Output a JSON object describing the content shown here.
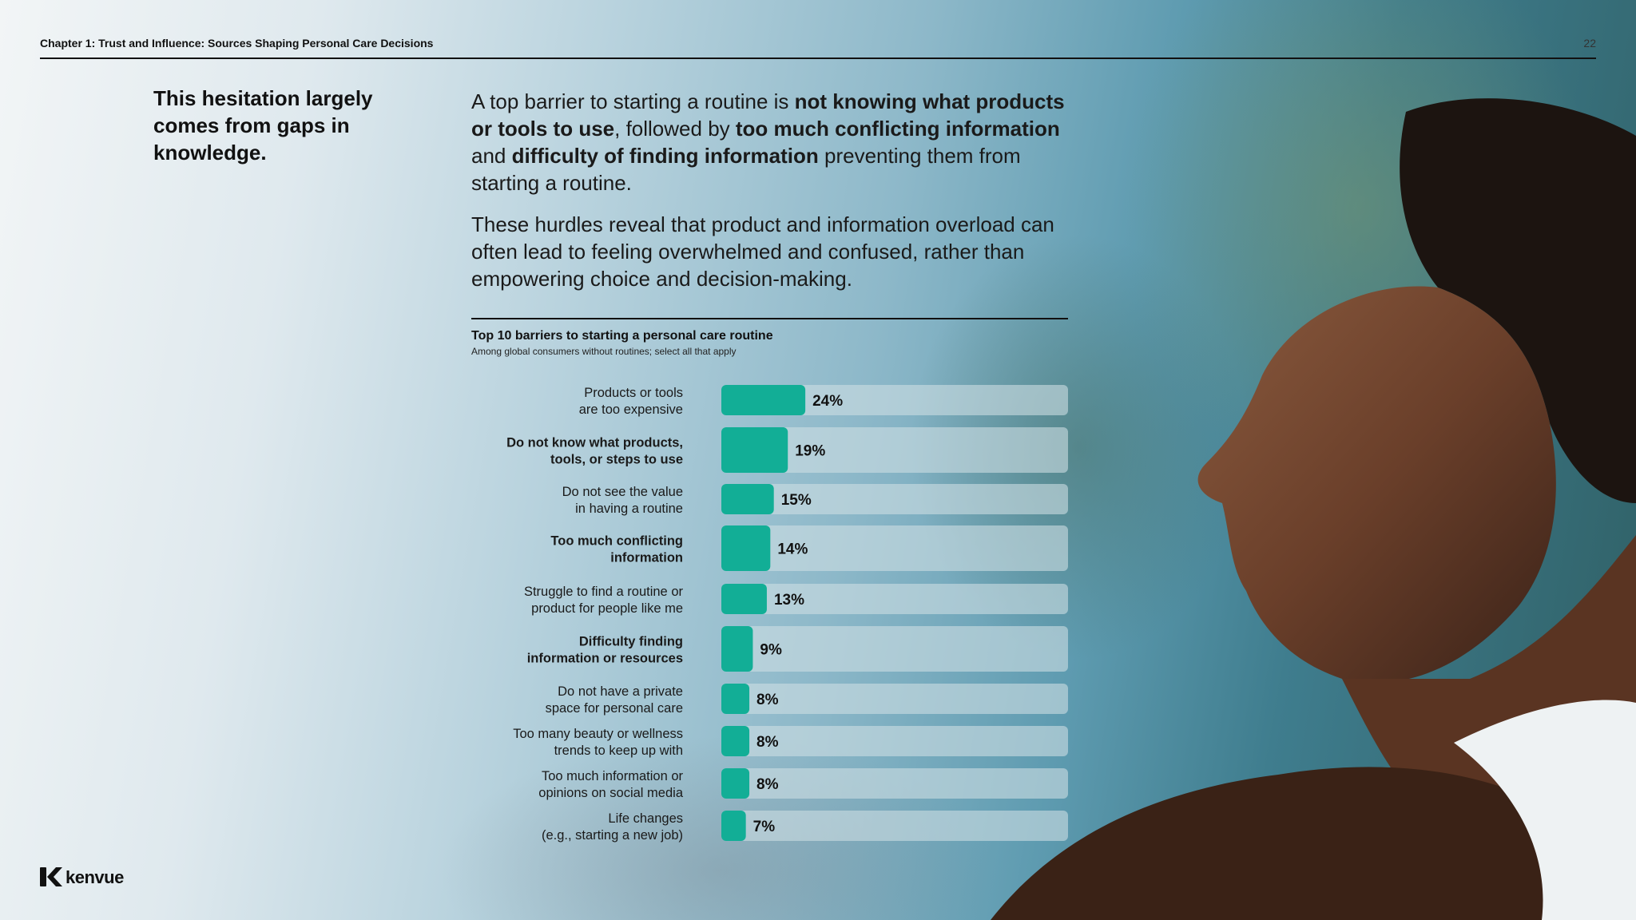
{
  "header": {
    "chapter": "Chapter 1: Trust and Influence: Sources Shaping Personal Care Decisions",
    "page_number": "22"
  },
  "headline": "This hesitation largely comes from gaps in knowledge.",
  "intro": {
    "p1": [
      {
        "text": "A top barrier to starting a routine is ",
        "bold": false
      },
      {
        "text": "not knowing what products or tools to use",
        "bold": true
      },
      {
        "text": ", followed by ",
        "bold": false
      },
      {
        "text": "too much conflicting information",
        "bold": true
      },
      {
        "text": " and ",
        "bold": false
      },
      {
        "text": "difficulty of finding information",
        "bold": true
      },
      {
        "text": " preventing them from starting a routine.",
        "bold": false
      }
    ],
    "p2": "These hurdles reveal that product and information overload can often lead to feeling overwhelmed and confused, rather than empowering choice and decision-making."
  },
  "chart_data": {
    "type": "bar",
    "orientation": "horizontal",
    "title": "Top 10 barriers to starting a personal care routine",
    "subtitle": "Among global consumers without routines; select all that apply",
    "xlim": [
      0,
      100
    ],
    "bar_color": "#12ae96",
    "track_color": "#cddde2",
    "categories": [
      {
        "label": [
          "Products or tools",
          "are too expensive"
        ],
        "value": 24,
        "value_label": "24%",
        "bold": false
      },
      {
        "label": [
          "Do not know what products,",
          "tools, or steps to use"
        ],
        "value": 19,
        "value_label": "19%",
        "bold": true
      },
      {
        "label": [
          "Do not see the value",
          "in having a routine"
        ],
        "value": 15,
        "value_label": "15%",
        "bold": false
      },
      {
        "label": [
          "Too much conflicting",
          "information"
        ],
        "value": 14,
        "value_label": "14%",
        "bold": true
      },
      {
        "label": [
          "Struggle to find a routine or",
          "product for people like me"
        ],
        "value": 13,
        "value_label": "13%",
        "bold": false
      },
      {
        "label": [
          "Difficulty finding",
          "information or resources"
        ],
        "value": 9,
        "value_label": "9%",
        "bold": true
      },
      {
        "label": [
          "Do not have a private",
          "space for personal care"
        ],
        "value": 8,
        "value_label": "8%",
        "bold": false
      },
      {
        "label": [
          "Too many beauty or wellness",
          "trends to keep up with"
        ],
        "value": 8,
        "value_label": "8%",
        "bold": false
      },
      {
        "label": [
          "Too much information or",
          "opinions on social media"
        ],
        "value": 8,
        "value_label": "8%",
        "bold": false
      },
      {
        "label": [
          "Life changes",
          "(e.g., starting a new job)"
        ],
        "value": 7,
        "value_label": "7%",
        "bold": false
      }
    ]
  },
  "logo": {
    "text": "kenvue",
    "icon": "kenvue-k-icon"
  }
}
